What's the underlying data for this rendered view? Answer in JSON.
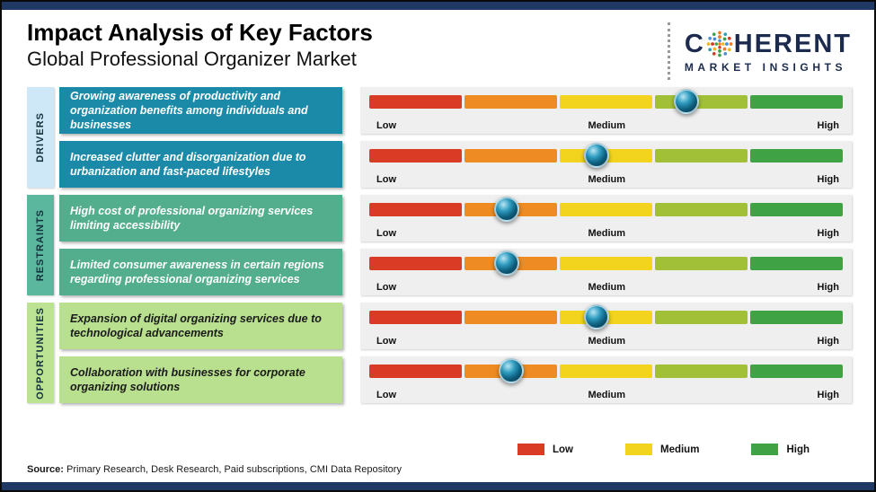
{
  "header": {
    "title": "Impact Analysis of Key Factors",
    "subtitle": "Global Professional Organizer Market",
    "logo": {
      "word_c": "C",
      "word_rest": "HERENT",
      "tagline": "MARKET INSIGHTS"
    }
  },
  "colors": {
    "navy_strip": "#203864",
    "logo_navy": "#1c2b4d",
    "panel": "#efefef",
    "segments": [
      "#d93b25",
      "#ee8c23",
      "#f2d41e",
      "#a2c037",
      "#3fa346"
    ],
    "driver_box": "#1b8aa8",
    "driver_strip": "#cfe8f7",
    "restraint_box": "#52ae8d",
    "restraint_strip": "#5bb79d",
    "opportunity_box": "#b9e08e",
    "opportunity_strip": "#bce294",
    "marker_core": "#0e5f7e"
  },
  "chart_data": {
    "type": "bar",
    "title": "Impact Analysis of Key Factors",
    "subtitle": "Global Professional Organizer Market",
    "scale": {
      "low": "Low",
      "medium": "Medium",
      "high": "High",
      "range_pct": [
        0,
        100
      ]
    },
    "groups": [
      {
        "name": "DRIVERS",
        "factors": [
          {
            "label": "Growing awareness of productivity and organization benefits among individuals and businesses",
            "impact_pct": 67,
            "impact_level": "Medium-High"
          },
          {
            "label": "Increased clutter and disorganization due to urbanization and fast-paced lifestyles",
            "impact_pct": 48,
            "impact_level": "Medium"
          }
        ]
      },
      {
        "name": "RESTRAINTS",
        "factors": [
          {
            "label": "High cost of professional organizing services limiting accessibility",
            "impact_pct": 29,
            "impact_level": "Low-Medium"
          },
          {
            "label": "Limited consumer awareness in certain regions regarding professional organizing services",
            "impact_pct": 29,
            "impact_level": "Low-Medium"
          }
        ]
      },
      {
        "name": "OPPORTUNITIES",
        "factors": [
          {
            "label": "Expansion of digital organizing services due to technological advancements",
            "impact_pct": 48,
            "impact_level": "Medium"
          },
          {
            "label": "Collaboration with businesses for corporate organizing solutions",
            "impact_pct": 30,
            "impact_level": "Low-Medium"
          }
        ]
      }
    ],
    "legend": [
      {
        "label": "Low",
        "color": "#d93b25"
      },
      {
        "label": "Medium",
        "color": "#f2d41e"
      },
      {
        "label": "High",
        "color": "#3fa346"
      }
    ]
  },
  "source": {
    "prefix": "Source:",
    "text": "Primary Research, Desk Research, Paid subscriptions, CMI Data Repository"
  }
}
